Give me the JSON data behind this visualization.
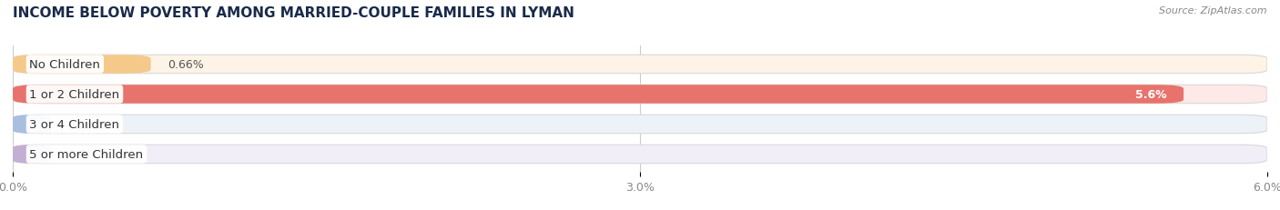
{
  "title": "INCOME BELOW POVERTY AMONG MARRIED-COUPLE FAMILIES IN LYMAN",
  "source": "Source: ZipAtlas.com",
  "categories": [
    "No Children",
    "1 or 2 Children",
    "3 or 4 Children",
    "5 or more Children"
  ],
  "values": [
    0.66,
    5.6,
    0.0,
    0.0
  ],
  "bar_colors": [
    "#f5c98a",
    "#e8736c",
    "#a8bfdf",
    "#c4aed4"
  ],
  "bg_color": "#ebebeb",
  "xlim": [
    0,
    6.0
  ],
  "xticks": [
    0.0,
    3.0,
    6.0
  ],
  "xtick_labels": [
    "0.0%",
    "3.0%",
    "6.0%"
  ],
  "bar_height": 0.62,
  "bar_gap": 0.38,
  "title_fontsize": 11,
  "tick_fontsize": 9,
  "label_fontsize": 9.5,
  "value_fontsize": 9
}
